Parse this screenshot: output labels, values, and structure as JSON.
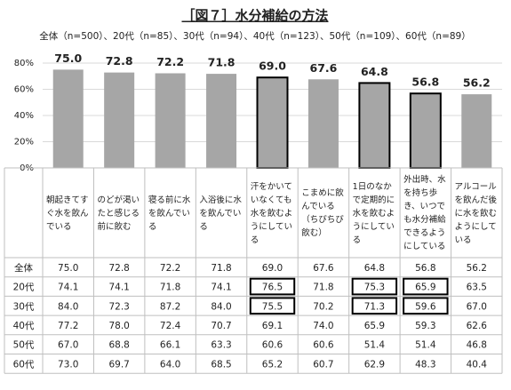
{
  "chart_data": {
    "type": "bar",
    "title": "［図７］水分補給の方法",
    "subtitle": "全体（n=500）、20代（n=85）、30代（n=94）、40代（n=123）、50代（n=109）、60代（n=89）",
    "categories": [
      "朝起きてすぐ水を飲んでいる",
      "のどが渇いたと感じる前に飲む",
      "寝る前に水を飲んでいる",
      "入浴後に水を飲んでいる",
      "汗をかいていなくても水を飲むようにしている",
      "こまめに飲んでいる（ちびちび飲む）",
      "1日のなかで定期的に水を飲むようにしている",
      "外出時、水を持ち歩き、いつでも水分補給できるようにしている",
      "アルコールを飲んだ後に水を飲むようにしている"
    ],
    "values": [
      75.0,
      72.8,
      72.2,
      71.8,
      69.0,
      67.6,
      64.8,
      56.8,
      56.2
    ],
    "value_labels": [
      "75.0",
      "72.8",
      "72.2",
      "71.8",
      "69.0",
      "67.6",
      "64.8",
      "56.8",
      "56.2"
    ],
    "color": "#a6a6a6",
    "ylim": [
      0,
      80
    ],
    "yticks": [
      {
        "value": 0,
        "label": "0%"
      },
      {
        "value": 20,
        "label": "20%"
      },
      {
        "value": 40,
        "label": "40%"
      },
      {
        "value": 60,
        "label": "60%"
      },
      {
        "value": 80,
        "label": "80%"
      }
    ],
    "grid": true
  },
  "table": {
    "rows": [
      [
        "全体",
        "75.0",
        "72.8",
        "72.2",
        "71.8",
        "69.0",
        "67.6",
        "64.8",
        "56.8",
        "56.2"
      ],
      [
        "20代",
        "74.1",
        "74.1",
        "71.8",
        "74.1",
        "76.5",
        "71.8",
        "75.3",
        "65.9",
        "63.5"
      ],
      [
        "30代",
        "84.0",
        "72.3",
        "87.2",
        "84.0",
        "75.5",
        "70.2",
        "71.3",
        "59.6",
        "67.0"
      ],
      [
        "40代",
        "77.2",
        "78.0",
        "72.4",
        "70.7",
        "69.1",
        "74.0",
        "65.9",
        "59.3",
        "62.6"
      ],
      [
        "50代",
        "67.0",
        "68.8",
        "66.1",
        "63.3",
        "60.6",
        "60.6",
        "51.4",
        "51.4",
        "46.8"
      ],
      [
        "60代",
        "73.0",
        "69.7",
        "64.0",
        "68.5",
        "65.2",
        "60.7",
        "62.9",
        "48.3",
        "40.4"
      ]
    ]
  }
}
